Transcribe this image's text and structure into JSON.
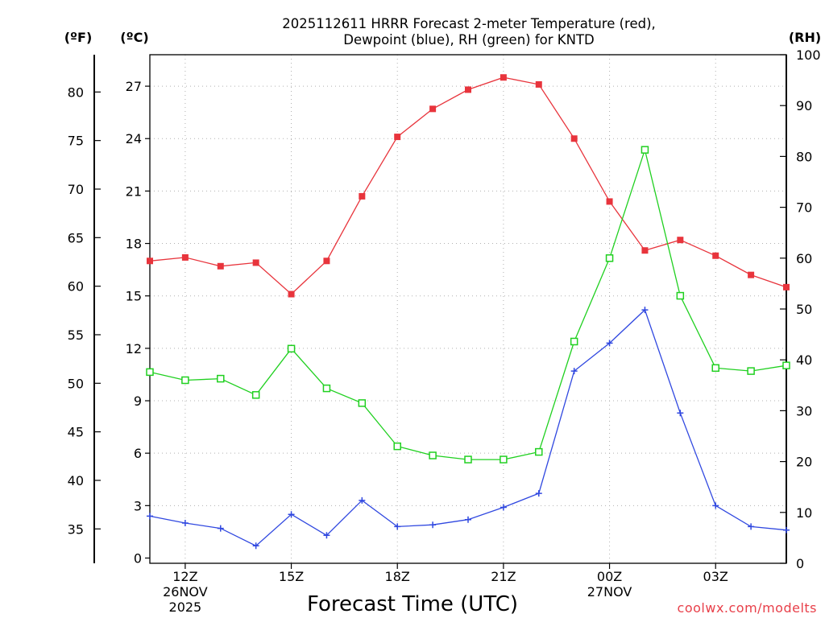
{
  "chart_data": {
    "type": "line",
    "title_line1": "2025112611 HRRR Forecast 2-meter Temperature (red),",
    "title_line2": "Dewpoint (blue), RH (green) for KNTD",
    "xlabel": "Forecast Time (UTC)",
    "credit": "coolwx.com/modelts",
    "units": {
      "fahrenheit": "(ºF)",
      "celsius": "(ºC)",
      "rh": "(RH)"
    },
    "x_hours": [
      11,
      12,
      13,
      14,
      15,
      16,
      17,
      18,
      19,
      20,
      21,
      22,
      23,
      24,
      25,
      26,
      27,
      28,
      29
    ],
    "x_ticks": [
      {
        "hour": 12,
        "label": "12Z",
        "sub1": "26NOV",
        "sub2": "2025"
      },
      {
        "hour": 15,
        "label": "15Z",
        "sub1": "",
        "sub2": ""
      },
      {
        "hour": 18,
        "label": "18Z",
        "sub1": "",
        "sub2": ""
      },
      {
        "hour": 21,
        "label": "21Z",
        "sub1": "",
        "sub2": ""
      },
      {
        "hour": 24,
        "label": "00Z",
        "sub1": "27NOV",
        "sub2": ""
      },
      {
        "hour": 27,
        "label": "03Z",
        "sub1": "",
        "sub2": ""
      }
    ],
    "celsius_ticks": [
      "0",
      "3",
      "6",
      "9",
      "12",
      "15",
      "18",
      "21",
      "24",
      "27"
    ],
    "fahrenheit_ticks": [
      "35",
      "40",
      "45",
      "50",
      "55",
      "60",
      "65",
      "70",
      "75",
      "80"
    ],
    "rh_ticks": [
      "0",
      "10",
      "20",
      "30",
      "40",
      "50",
      "60",
      "70",
      "80",
      "90",
      "100"
    ],
    "celsius_range": [
      -0.3,
      28.8
    ],
    "rh_range": [
      0,
      100
    ],
    "series": [
      {
        "name": "Temperature",
        "axis": "celsius",
        "color": "#e8343c",
        "marker": "filled-square",
        "values": [
          17.0,
          17.2,
          16.7,
          16.9,
          15.1,
          17.0,
          20.7,
          24.1,
          25.7,
          26.8,
          27.5,
          27.1,
          24.0,
          20.4,
          17.6,
          18.2,
          17.3,
          16.2,
          15.5
        ]
      },
      {
        "name": "Dewpoint",
        "axis": "celsius",
        "color": "#3048e0",
        "marker": "plus",
        "values": [
          2.4,
          2.0,
          1.7,
          0.7,
          2.5,
          1.3,
          3.3,
          1.8,
          1.9,
          2.2,
          2.9,
          3.7,
          10.7,
          12.3,
          14.2,
          8.3,
          3.0,
          1.8,
          1.6
        ]
      },
      {
        "name": "RH",
        "axis": "rh",
        "color": "#20d020",
        "marker": "open-square",
        "values": [
          37.6,
          36.0,
          36.3,
          33.1,
          42.2,
          34.4,
          31.5,
          23.0,
          21.2,
          20.4,
          20.4,
          21.9,
          43.6,
          60.0,
          81.3,
          52.6,
          38.4,
          37.8,
          38.9
        ]
      }
    ]
  }
}
